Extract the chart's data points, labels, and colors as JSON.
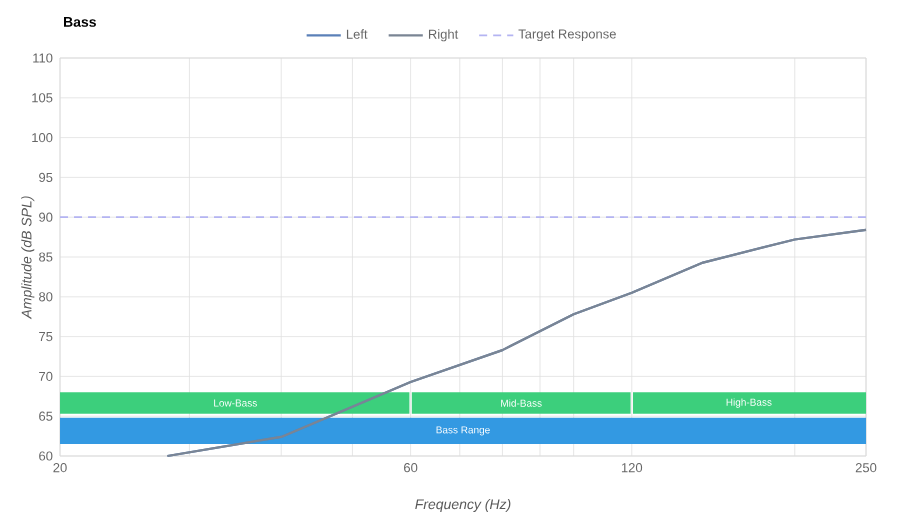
{
  "chart_data": {
    "type": "line",
    "title": "Bass",
    "xlabel": "Frequency (Hz)",
    "ylabel": "Amplitude (dB SPL)",
    "x": [
      28,
      40,
      50,
      60,
      80,
      100,
      120,
      150,
      200,
      250
    ],
    "series": [
      {
        "name": "Left",
        "color": "#5b80b8",
        "values": [
          60,
          62.4,
          66.2,
          69.3,
          73.3,
          77.8,
          80.5,
          84.3,
          87.2,
          88.4
        ]
      },
      {
        "name": "Right",
        "color": "#7a8594",
        "values": [
          60,
          62.4,
          66.2,
          69.3,
          73.3,
          77.8,
          80.5,
          84.3,
          87.2,
          88.4
        ]
      }
    ],
    "ref_lines": [
      {
        "axis": "y",
        "value": 90,
        "label": "Target Response",
        "color": "#b4b4f2",
        "line_style": "dashed"
      }
    ],
    "bands": [
      {
        "axis": "x",
        "from": 20,
        "to": 60,
        "label": "Low-Bass",
        "color": "#3ccf7c"
      },
      {
        "axis": "x",
        "from": 60,
        "to": 120,
        "label": "Mid-Bass",
        "color": "#3ccf7c"
      },
      {
        "axis": "x",
        "from": 120,
        "to": 250,
        "label": "High-Bass",
        "color": "#3ccf7c"
      },
      {
        "axis": "x",
        "from": 20,
        "to": 250,
        "label": "Bass Range",
        "color": "#3399e2"
      }
    ],
    "log": "x",
    "grid": true,
    "legend": "top",
    "line_style": "solid",
    "marker": "none",
    "xlim": [
      20,
      250
    ],
    "ylim": [
      60,
      110
    ],
    "xticks": [
      20,
      {
        "value": 30,
        "label": null
      },
      {
        "value": 40,
        "label": null
      },
      {
        "value": 50,
        "label": null
      },
      60,
      {
        "value": 70,
        "label": null
      },
      {
        "value": 80,
        "label": null
      },
      {
        "value": 90,
        "label": null
      },
      {
        "value": 100,
        "label": null
      },
      120,
      {
        "value": 200,
        "label": null
      },
      250
    ],
    "yticks": [
      60,
      65,
      70,
      75,
      80,
      85,
      90,
      95,
      100,
      105,
      110
    ]
  }
}
